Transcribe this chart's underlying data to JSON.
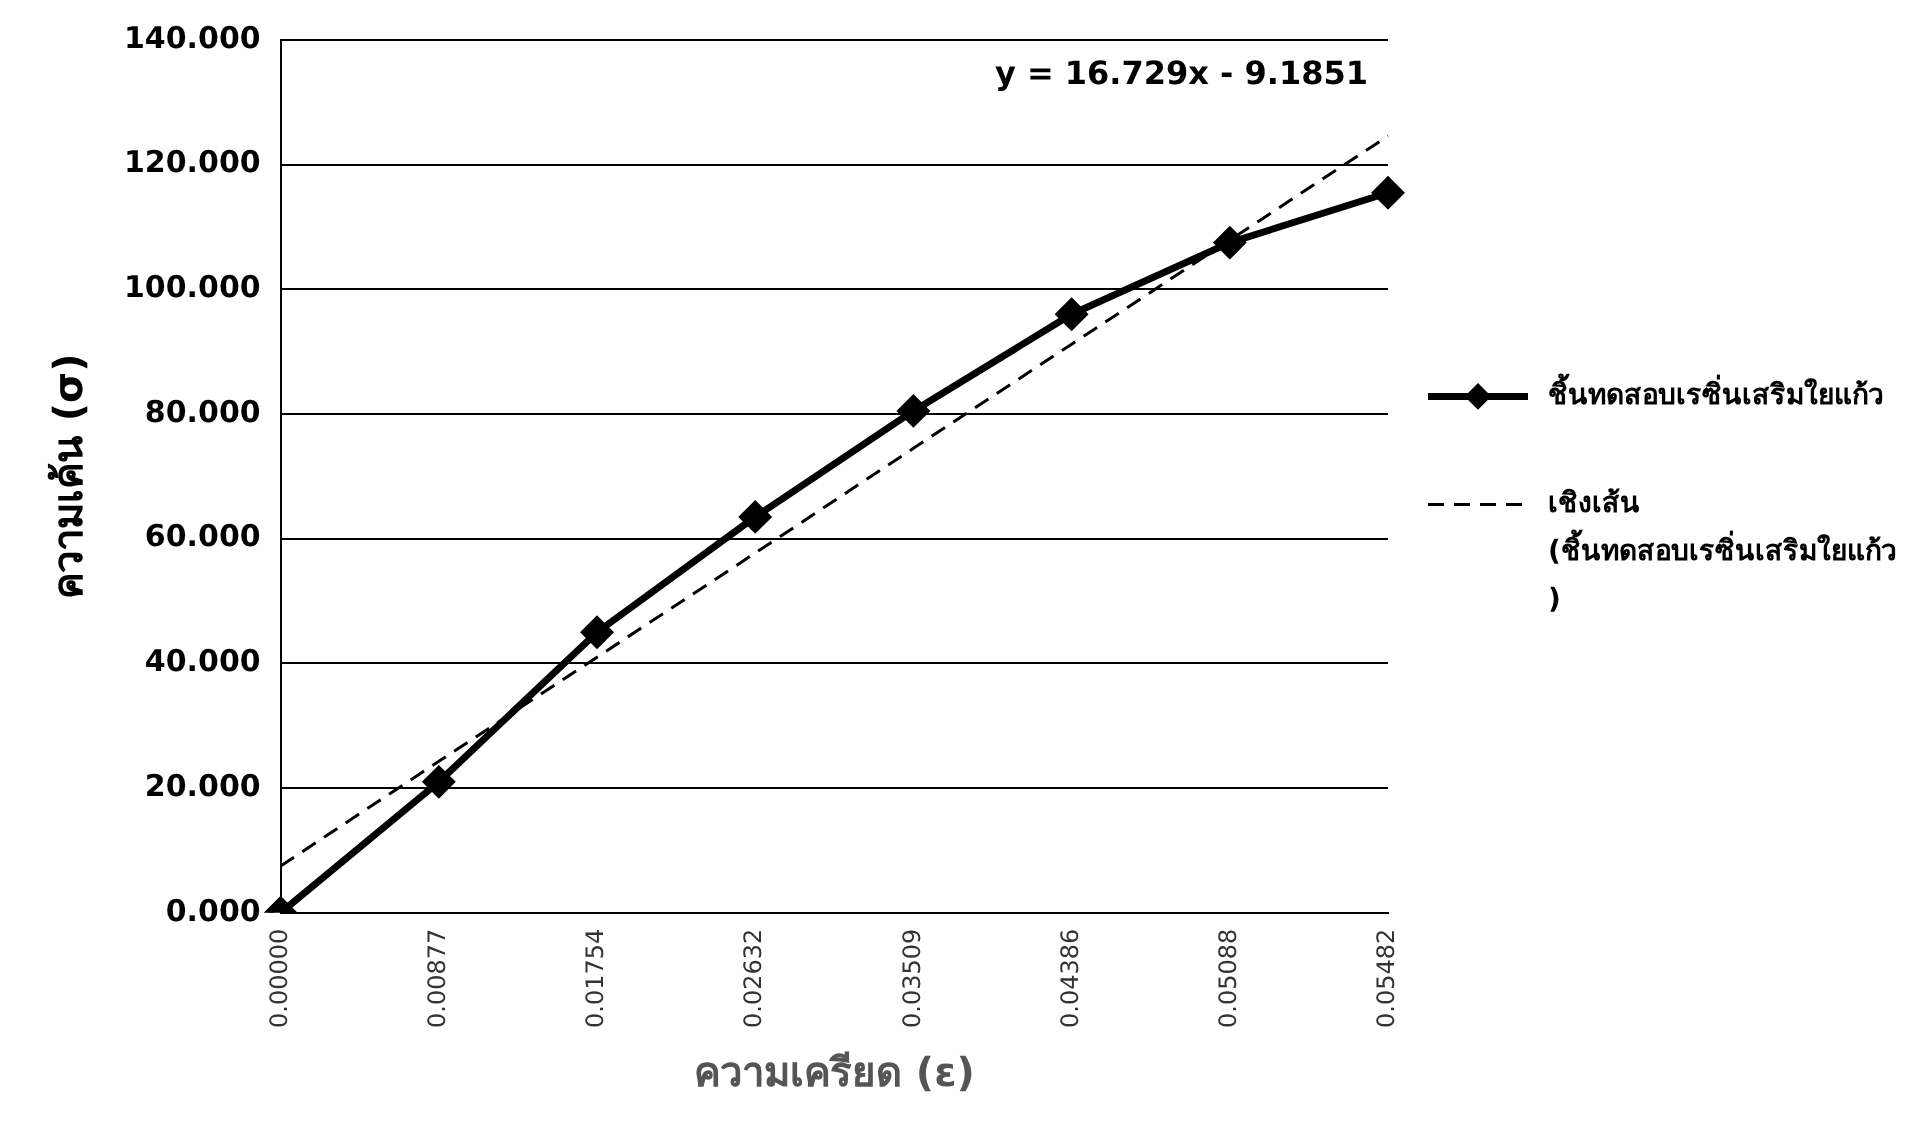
{
  "chart_data": {
    "type": "line",
    "xlabel": "ความเครียด (ε)",
    "ylabel": "ความเค้น (σ)",
    "categories": [
      "0.00000",
      "0.00877",
      "0.01754",
      "0.02632",
      "0.03509",
      "0.04386",
      "0.05088",
      "0.05482"
    ],
    "series": [
      {
        "name": "ชิ้นทดสอบเรซิ่นเสริมใยแก้ว",
        "color": "#000000",
        "values": [
          0,
          21,
          45,
          63.5,
          80.5,
          96,
          107.5,
          115.5
        ],
        "marker": "diamond",
        "line_style": "solid"
      },
      {
        "name": "เชิงเส้น (ชิ้นทดสอบเรซิ่นเสริมใยแก้ว)",
        "color": "#000000",
        "values": [
          7.5,
          24.3,
          41.0,
          57.7,
          74.5,
          91.2,
          107.9,
          124.6
        ],
        "marker": "none",
        "line_style": "dashed"
      }
    ],
    "annotations": [
      "y = 16.729x - 9.1851"
    ],
    "ylim": [
      0,
      140
    ],
    "yticks": [
      {
        "value": 0,
        "label": "0.000"
      },
      {
        "value": 20,
        "label": "20.000"
      },
      {
        "value": 40,
        "label": "40.000"
      },
      {
        "value": 60,
        "label": "60.000"
      },
      {
        "value": 80,
        "label": "80.000"
      },
      {
        "value": 100,
        "label": "100.000"
      },
      {
        "value": 120,
        "label": "120.000"
      },
      {
        "value": 140,
        "label": "140.000"
      }
    ],
    "grid": "y",
    "legend": "right"
  }
}
